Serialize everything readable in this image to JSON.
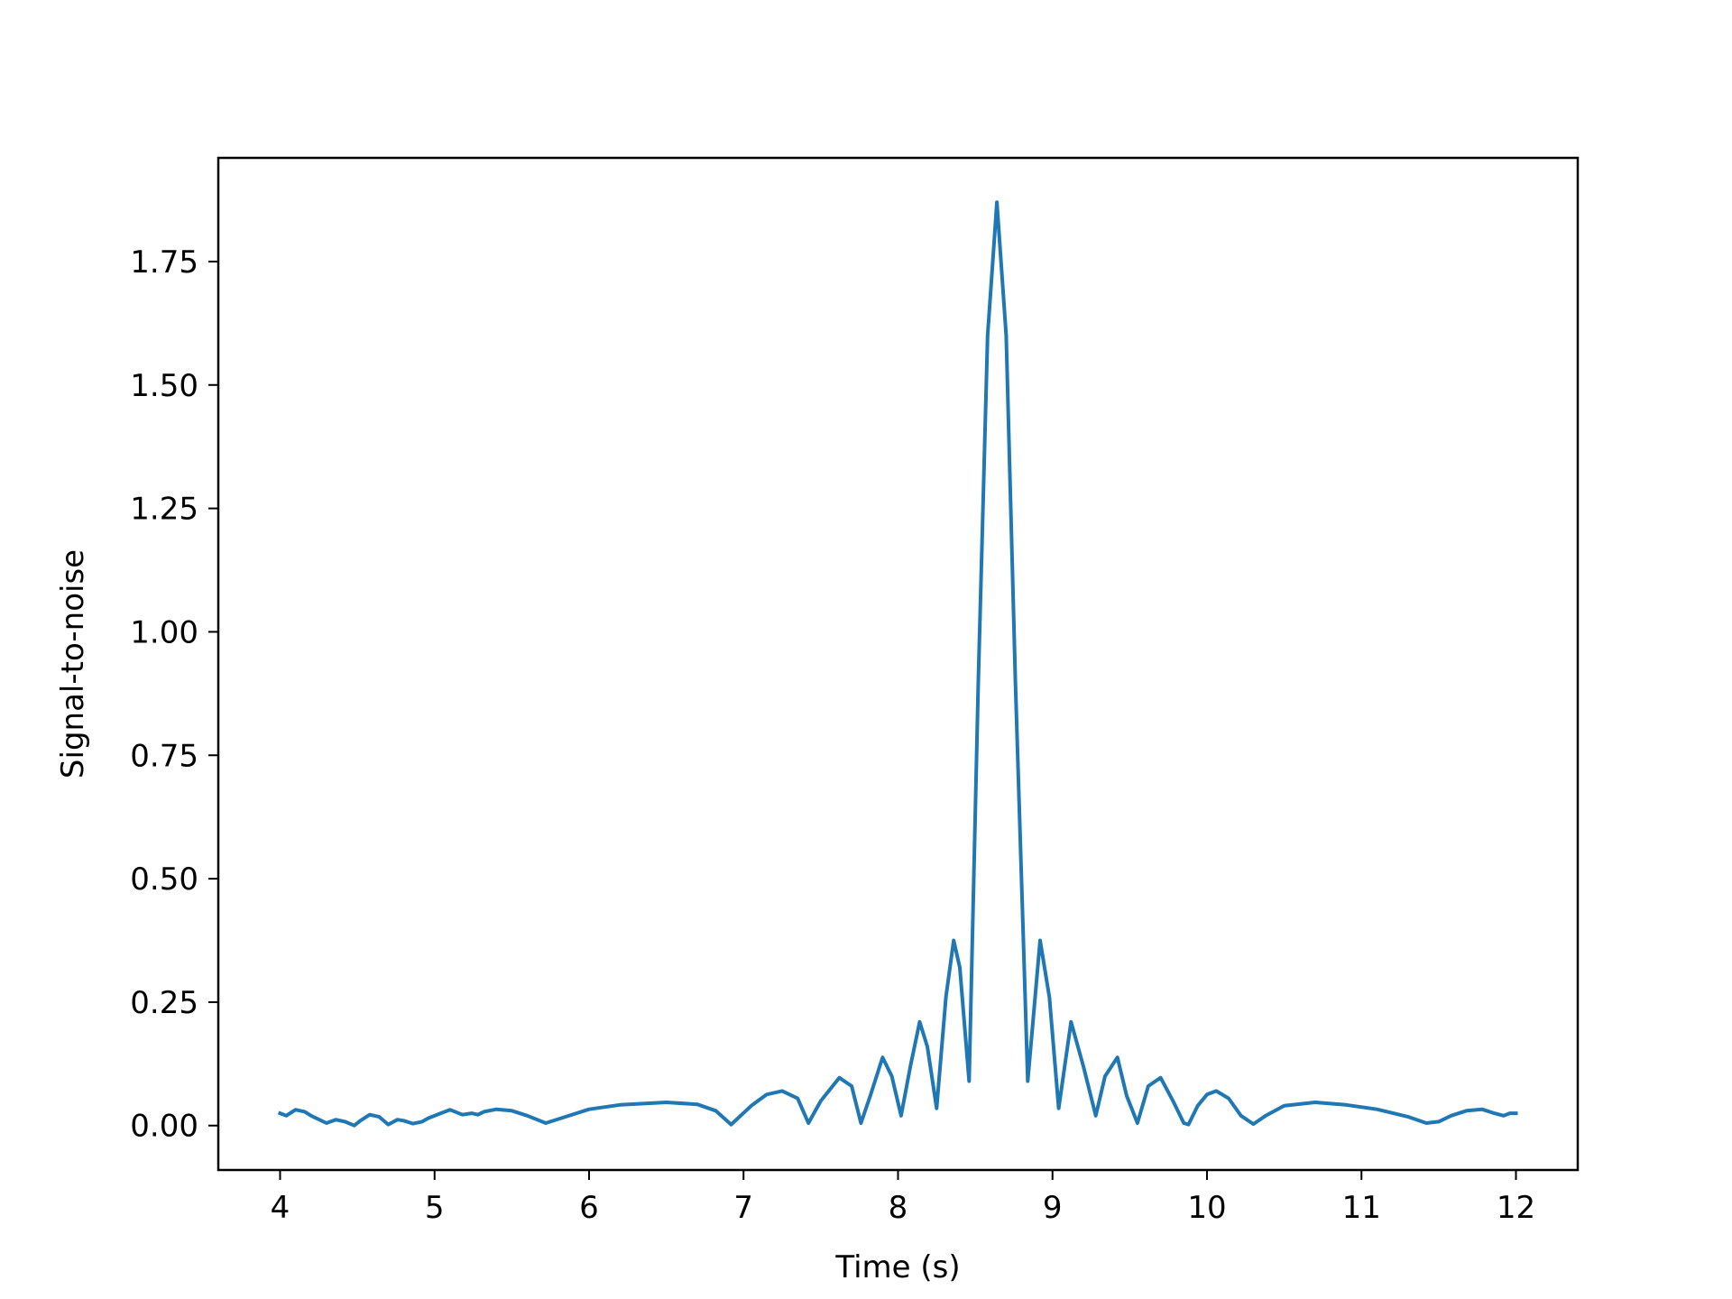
{
  "chart_data": {
    "type": "line",
    "title": "",
    "xlabel": "Time (s)",
    "ylabel": "Signal-to-noise",
    "xlim": [
      3.6,
      12.4
    ],
    "ylim": [
      -0.09,
      1.96
    ],
    "xticks": [
      4,
      5,
      6,
      7,
      8,
      9,
      10,
      11,
      12
    ],
    "yticks": [
      0.0,
      0.25,
      0.5,
      0.75,
      1.0,
      1.25,
      1.5,
      1.75
    ],
    "ytick_labels": [
      "0.00",
      "0.25",
      "0.50",
      "0.75",
      "1.00",
      "1.25",
      "1.50",
      "1.75"
    ],
    "grid": false,
    "legend": "none",
    "line_color": "#1f77b4",
    "series": [
      {
        "x": [
          4.0,
          4.04,
          4.1,
          4.16,
          4.2,
          4.3,
          4.36,
          4.42,
          4.48,
          4.52,
          4.58,
          4.64,
          4.7,
          4.76,
          4.8,
          4.86,
          4.92,
          4.96,
          5.04,
          5.1,
          5.18,
          5.24,
          5.28,
          5.32,
          5.4,
          5.5,
          5.6,
          5.72,
          5.85,
          6.0,
          6.2,
          6.5,
          6.7,
          6.82,
          6.92,
          7.05,
          7.15,
          7.25,
          7.35,
          7.42,
          7.5,
          7.62,
          7.7,
          7.76,
          7.82,
          7.9,
          7.96,
          8.02,
          8.08,
          8.14,
          8.19,
          8.25,
          8.31,
          8.36,
          8.4,
          8.46,
          8.52,
          8.58,
          8.64,
          8.7,
          8.76,
          8.84,
          8.92,
          8.98,
          9.04,
          9.12,
          9.2,
          9.28,
          9.34,
          9.42,
          9.48,
          9.55,
          9.62,
          9.7,
          9.78,
          9.85,
          9.88,
          9.94,
          10.0,
          10.06,
          10.14,
          10.22,
          10.3,
          10.38,
          10.5,
          10.7,
          10.9,
          11.1,
          11.3,
          11.42,
          11.5,
          11.58,
          11.68,
          11.78,
          11.86,
          11.92,
          11.96,
          12.0
        ],
        "y": [
          0.025,
          0.02,
          0.032,
          0.028,
          0.02,
          0.005,
          0.012,
          0.008,
          0.0,
          0.01,
          0.022,
          0.018,
          0.002,
          0.012,
          0.01,
          0.004,
          0.008,
          0.015,
          0.025,
          0.032,
          0.022,
          0.025,
          0.022,
          0.028,
          0.033,
          0.03,
          0.02,
          0.005,
          0.018,
          0.033,
          0.042,
          0.047,
          0.043,
          0.03,
          0.002,
          0.04,
          0.063,
          0.07,
          0.055,
          0.005,
          0.05,
          0.097,
          0.08,
          0.005,
          0.06,
          0.138,
          0.1,
          0.02,
          0.12,
          0.21,
          0.16,
          0.035,
          0.26,
          0.375,
          0.32,
          0.09,
          0.9,
          1.6,
          1.87,
          1.6,
          0.9,
          0.09,
          0.375,
          0.26,
          0.035,
          0.21,
          0.12,
          0.02,
          0.1,
          0.138,
          0.06,
          0.005,
          0.08,
          0.097,
          0.05,
          0.005,
          0.002,
          0.04,
          0.063,
          0.07,
          0.055,
          0.02,
          0.003,
          0.02,
          0.04,
          0.047,
          0.042,
          0.033,
          0.018,
          0.005,
          0.008,
          0.02,
          0.03,
          0.033,
          0.025,
          0.02,
          0.025,
          0.025
        ]
      }
    ]
  }
}
